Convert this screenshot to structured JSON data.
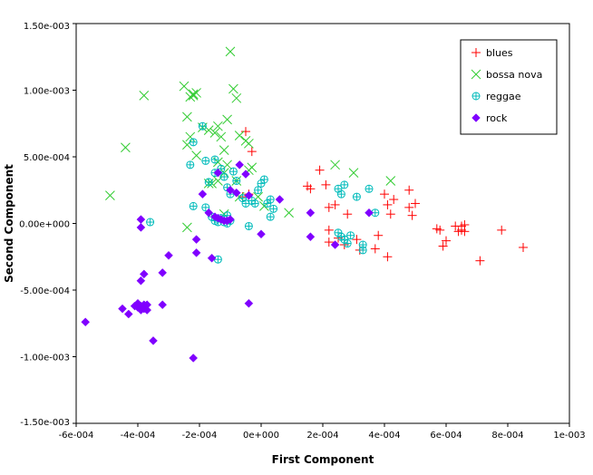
{
  "chart_data": {
    "type": "scatter",
    "title": "",
    "xlabel": "First Component",
    "ylabel": "Second Component",
    "xlim": [
      -0.0006,
      0.001
    ],
    "ylim": [
      -0.0015,
      0.0015
    ],
    "x_ticks": [
      -0.0006,
      -0.0004,
      -0.0002,
      0.0,
      0.0002,
      0.0004,
      0.0006,
      0.0008,
      0.001
    ],
    "x_tick_labels": [
      "-6e-004",
      "-4e-004",
      "-2e-004",
      "0e+000",
      "2e-004",
      "4e-004",
      "6e-004",
      "8e-004",
      "1e-003"
    ],
    "y_ticks": [
      -0.0015,
      -0.001,
      -0.0005,
      0.0,
      0.0005,
      0.001,
      0.0015
    ],
    "y_tick_labels": [
      "-1.50e-003",
      "-1.00e-003",
      "-5.00e-004",
      "0.00e+000",
      "5.00e-004",
      "1.00e-003",
      "1.50e-003"
    ],
    "grid": false,
    "legend_position": "top-right",
    "series": [
      {
        "name": "blues",
        "marker": "plus",
        "color": "#ff0000",
        "points": [
          [
            -5e-05,
            0.00069
          ],
          [
            -3e-05,
            0.00054
          ],
          [
            -4e-05,
            0.00022
          ],
          [
            -6e-05,
            0.0002
          ],
          [
            0.00015,
            0.00028
          ],
          [
            0.00016,
            0.00026
          ],
          [
            0.00019,
            0.0004
          ],
          [
            0.00021,
            0.00029
          ],
          [
            0.00022,
            0.00012
          ],
          [
            0.00022,
            -5e-05
          ],
          [
            0.00024,
            0.00014
          ],
          [
            0.00022,
            -0.00014
          ],
          [
            0.00025,
            -0.00011
          ],
          [
            0.00027,
            -0.00016
          ],
          [
            0.00028,
            7e-05
          ],
          [
            0.00031,
            -0.00012
          ],
          [
            0.00032,
            -0.0002
          ],
          [
            0.00037,
            -0.00019
          ],
          [
            0.00038,
            -9e-05
          ],
          [
            0.0004,
            0.00022
          ],
          [
            0.00041,
            0.00014
          ],
          [
            0.00041,
            -0.00025
          ],
          [
            0.00042,
            7e-05
          ],
          [
            0.00043,
            0.00018
          ],
          [
            0.00048,
            0.00025
          ],
          [
            0.00048,
            0.00012
          ],
          [
            0.00049,
            6e-05
          ],
          [
            0.0005,
            0.00015
          ],
          [
            0.00057,
            -4e-05
          ],
          [
            0.00058,
            -5e-05
          ],
          [
            0.00059,
            -0.00017
          ],
          [
            0.0006,
            -0.00013
          ],
          [
            0.00063,
            -2e-05
          ],
          [
            0.00064,
            -6e-05
          ],
          [
            0.00065,
            -2e-05
          ],
          [
            0.00065,
            -5e-05
          ],
          [
            0.00066,
            -6e-05
          ],
          [
            0.00066,
            -1e-05
          ],
          [
            0.00071,
            -0.00028
          ],
          [
            0.00078,
            -5e-05
          ],
          [
            0.00085,
            -0.00018
          ]
        ]
      },
      {
        "name": "bossa nova",
        "marker": "cross",
        "color": "#33cc33",
        "points": [
          [
            -0.00049,
            0.00021
          ],
          [
            -0.00044,
            0.00057
          ],
          [
            -0.00038,
            0.00096
          ],
          [
            -0.00025,
            0.00103
          ],
          [
            -0.00024,
            0.0008
          ],
          [
            -0.00023,
            0.00095
          ],
          [
            -0.00022,
            0.00096
          ],
          [
            -0.00022,
            0.00097
          ],
          [
            -0.00021,
            0.00098
          ],
          [
            -0.00023,
            0.00065
          ],
          [
            -0.00024,
            0.00059
          ],
          [
            -0.00021,
            0.00051
          ],
          [
            -0.00019,
            0.00072
          ],
          [
            -0.00017,
            0.0007
          ],
          [
            -0.00015,
            0.00068
          ],
          [
            -0.00014,
            0.00073
          ],
          [
            -0.00013,
            0.00065
          ],
          [
            -0.00012,
            0.00055
          ],
          [
            -0.00011,
            0.00078
          ],
          [
            -0.0001,
            0.00129
          ],
          [
            -9e-05,
            0.00101
          ],
          [
            -8e-05,
            0.00094
          ],
          [
            -7e-05,
            0.00066
          ],
          [
            -5e-05,
            0.00062
          ],
          [
            -4e-05,
            0.0006
          ],
          [
            -0.00014,
            0.00046
          ],
          [
            -0.00011,
            0.00044
          ],
          [
            -0.00012,
            0.00038
          ],
          [
            -0.00014,
            0.00032
          ],
          [
            -0.00016,
            0.0003
          ],
          [
            -0.00017,
            0.0003
          ],
          [
            -8e-05,
            0.00032
          ],
          [
            -7e-05,
            0.0002
          ],
          [
            -4e-05,
            0.0004
          ],
          [
            -3e-05,
            0.00042
          ],
          [
            -1e-05,
            0.0002
          ],
          [
            1e-05,
            0.00013
          ],
          [
            -0.00024,
            -3e-05
          ],
          [
            9e-05,
            8e-05
          ],
          [
            0.00024,
            0.00044
          ],
          [
            0.0003,
            0.00038
          ],
          [
            0.00042,
            0.00032
          ],
          [
            -0.00012,
            7e-05
          ]
        ]
      },
      {
        "name": "reggae",
        "marker": "circleplus",
        "color": "#00bbbb",
        "points": [
          [
            -0.00036,
            1e-05
          ],
          [
            -0.00022,
            0.00061
          ],
          [
            -0.00023,
            0.00044
          ],
          [
            -0.00019,
            0.00073
          ],
          [
            -0.00018,
            0.00047
          ],
          [
            -0.00017,
            0.00031
          ],
          [
            -0.00015,
            0.00048
          ],
          [
            -0.00015,
            0.00038
          ],
          [
            -0.00013,
            0.00041
          ],
          [
            -0.00012,
            0.00035
          ],
          [
            -0.00011,
            0.00027
          ],
          [
            -0.0001,
            0.00022
          ],
          [
            -9e-05,
            0.00039
          ],
          [
            -8e-05,
            0.00032
          ],
          [
            -0.00022,
            0.00013
          ],
          [
            -0.00018,
            0.00012
          ],
          [
            -0.00016,
            5e-05
          ],
          [
            -0.00015,
            2e-05
          ],
          [
            -0.00014,
            1e-05
          ],
          [
            -0.00013,
            4e-05
          ],
          [
            -0.00012,
            1e-05
          ],
          [
            -0.00011,
            0.0
          ],
          [
            -0.0001,
            2e-05
          ],
          [
            -6e-05,
            0.00019
          ],
          [
            -5e-05,
            0.00015
          ],
          [
            -3e-05,
            0.00017
          ],
          [
            -2e-05,
            0.00015
          ],
          [
            -1e-05,
            0.00025
          ],
          [
            0.0,
            0.0003
          ],
          [
            1e-05,
            0.00033
          ],
          [
            2e-05,
            0.00015
          ],
          [
            3e-05,
            0.00018
          ],
          [
            4e-05,
            0.00011
          ],
          [
            3e-05,
            5e-05
          ],
          [
            -4e-05,
            -2e-05
          ],
          [
            -0.00014,
            -0.00027
          ],
          [
            0.00025,
            0.00026
          ],
          [
            0.00026,
            0.00022
          ],
          [
            0.00027,
            0.00029
          ],
          [
            0.00025,
            -7e-05
          ],
          [
            0.00026,
            -0.0001
          ],
          [
            0.00027,
            -0.00012
          ],
          [
            0.00028,
            -0.00015
          ],
          [
            0.00029,
            -9e-05
          ],
          [
            0.00031,
            0.0002
          ],
          [
            0.00033,
            -0.00016
          ],
          [
            0.00033,
            -0.0002
          ],
          [
            0.00035,
            0.00026
          ],
          [
            0.00037,
            8e-05
          ],
          [
            -0.00011,
            6e-05
          ],
          [
            -0.00012,
            3e-05
          ]
        ]
      },
      {
        "name": "rock",
        "marker": "diamond",
        "color": "#8000ff",
        "points": [
          [
            -0.00057,
            -0.00074
          ],
          [
            -0.00045,
            -0.00064
          ],
          [
            -0.00043,
            -0.00068
          ],
          [
            -0.00041,
            -0.00062
          ],
          [
            -0.0004,
            -0.00063
          ],
          [
            -0.00039,
            -0.00062
          ],
          [
            -0.00038,
            -0.00061
          ],
          [
            -0.00038,
            -0.00064
          ],
          [
            -0.00037,
            -0.00065
          ],
          [
            -0.00039,
            -0.00065
          ],
          [
            -0.0004,
            -0.0006
          ],
          [
            -0.00037,
            -0.00061
          ],
          [
            -0.00038,
            -0.00063
          ],
          [
            -0.00039,
            -0.00043
          ],
          [
            -0.00038,
            -0.00038
          ],
          [
            -0.00039,
            3e-05
          ],
          [
            -0.00039,
            -3e-05
          ],
          [
            -0.00035,
            -0.00088
          ],
          [
            -0.00032,
            -0.00061
          ],
          [
            -0.00032,
            -0.00037
          ],
          [
            -0.0003,
            -0.00024
          ],
          [
            -0.00022,
            -0.00101
          ],
          [
            -0.00021,
            -0.00022
          ],
          [
            -0.00021,
            -0.00012
          ],
          [
            -0.00019,
            0.00022
          ],
          [
            -0.00017,
            8e-05
          ],
          [
            -0.00016,
            -0.00026
          ],
          [
            -0.00015,
            5e-05
          ],
          [
            -0.00014,
            4e-05
          ],
          [
            -0.00013,
            3e-05
          ],
          [
            -0.00012,
            2e-05
          ],
          [
            -0.00011,
            2e-05
          ],
          [
            -0.0001,
            3e-05
          ],
          [
            -0.00014,
            0.00038
          ],
          [
            -0.0001,
            0.00025
          ],
          [
            -8e-05,
            0.00023
          ],
          [
            -7e-05,
            0.00044
          ],
          [
            -5e-05,
            0.00037
          ],
          [
            -4e-05,
            0.00021
          ],
          [
            -4e-05,
            -0.0006
          ],
          [
            0.0,
            -8e-05
          ],
          [
            6e-05,
            0.00018
          ],
          [
            0.00016,
            8e-05
          ],
          [
            0.00016,
            -0.0001
          ],
          [
            0.00024,
            -0.00016
          ],
          [
            0.00035,
            8e-05
          ]
        ]
      }
    ]
  }
}
